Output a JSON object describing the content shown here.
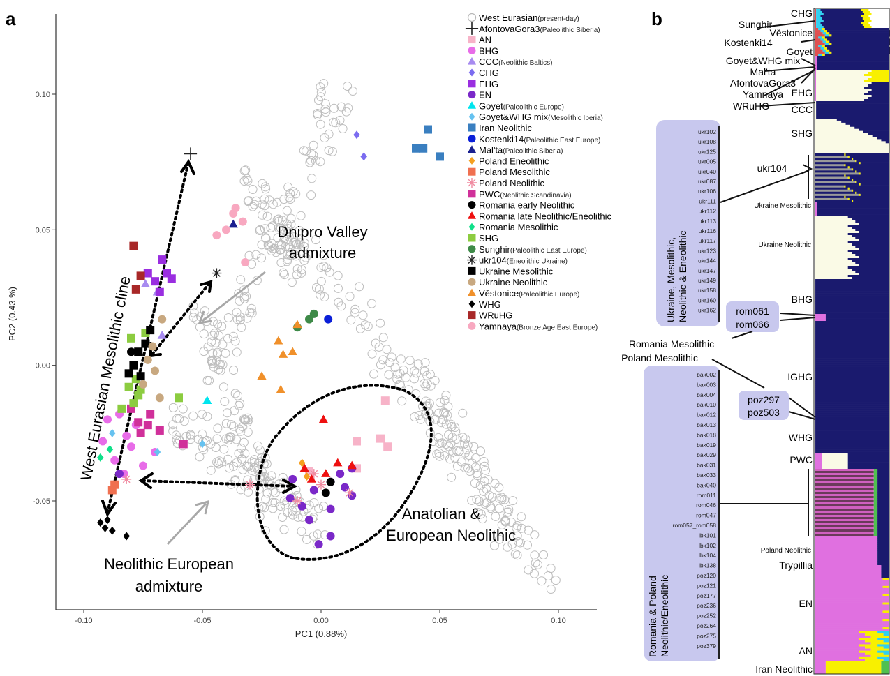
{
  "panels": {
    "a": "a",
    "b": "b"
  },
  "chart_data": {
    "type": "scatter",
    "xlabel": "PC1 (0.88%)",
    "ylabel": "PC2 (0.43 %)",
    "xlim": [
      -0.11,
      0.125
    ],
    "ylim": [
      -0.09,
      0.125
    ],
    "xticks": [
      {
        "v": -0.1,
        "label": "-0.10"
      },
      {
        "v": -0.05,
        "label": "-0.05"
      },
      {
        "v": 0.0,
        "label": "0.00"
      },
      {
        "v": 0.05,
        "label": "0.05"
      },
      {
        "v": 0.1,
        "label": "0.10"
      }
    ],
    "yticks": [
      {
        "v": -0.05,
        "label": "-0.05"
      },
      {
        "v": 0.0,
        "label": "0.00"
      },
      {
        "v": 0.05,
        "label": "0.05"
      },
      {
        "v": 0.1,
        "label": "0.10"
      }
    ],
    "legend": [
      {
        "name": "West Eurasian",
        "note": "(present-day)",
        "shape": "circle-open",
        "color": "#b8b8b8"
      },
      {
        "name": "AfontovaGora3",
        "note": "(Paleolithic Siberia)",
        "shape": "plus",
        "color": "#222222"
      },
      {
        "name": "AN",
        "note": "",
        "shape": "square",
        "color": "#f7b3c8"
      },
      {
        "name": "BHG",
        "note": "",
        "shape": "circle",
        "color": "#e86ce8"
      },
      {
        "name": "CCC",
        "note": "(Neolithic Baltics)",
        "shape": "triangle",
        "color": "#a78bf0"
      },
      {
        "name": "CHG",
        "note": "",
        "shape": "diamond",
        "color": "#7b6cf0"
      },
      {
        "name": "EHG",
        "note": "",
        "shape": "square",
        "color": "#9a2ee0"
      },
      {
        "name": "EN",
        "note": "",
        "shape": "circle",
        "color": "#7a28c8"
      },
      {
        "name": "Goyet",
        "note": "(Paleolithic Europe)",
        "shape": "triangle",
        "color": "#00e5ee"
      },
      {
        "name": "Goyet&WHG mix",
        "note": "(Mesolithic Iberia)",
        "shape": "diamond",
        "color": "#66c2f0"
      },
      {
        "name": "Iran Neolithic",
        "note": "",
        "shape": "square",
        "color": "#3a7fc0"
      },
      {
        "name": "Kostenki14",
        "note": "(Paleolithic East Europe)",
        "shape": "circle",
        "color": "#0a1fd8"
      },
      {
        "name": "Mal'ta",
        "note": "(Paleolithic Siberia)",
        "shape": "triangle",
        "color": "#1a2090"
      },
      {
        "name": "Poland Eneolithic",
        "note": "",
        "shape": "diamond",
        "color": "#f5a020"
      },
      {
        "name": "Poland Mesolithic",
        "note": "",
        "shape": "square",
        "color": "#f07050"
      },
      {
        "name": "Poland Neolithic",
        "note": "",
        "shape": "asterisk",
        "color": "#f08aa0"
      },
      {
        "name": "PWC",
        "note": "(Neolithic Scandinavia)",
        "shape": "square",
        "color": "#d0309a"
      },
      {
        "name": "Romania early Neolithic",
        "note": "",
        "shape": "circle",
        "color": "#000000"
      },
      {
        "name": "Romania late Neolithic/Eneolithic",
        "note": "",
        "shape": "triangle",
        "color": "#ee1010"
      },
      {
        "name": "Romania Mesolithic",
        "note": "",
        "shape": "diamond",
        "color": "#10e08a"
      },
      {
        "name": "SHG",
        "note": "",
        "shape": "square",
        "color": "#8ccc40"
      },
      {
        "name": "Sunghir",
        "note": "(Paleolithic East Europe)",
        "shape": "circle",
        "color": "#3e8a48"
      },
      {
        "name": "ukr104",
        "note": "(Eneolithic Ukraine)",
        "shape": "asterisk",
        "color": "#222222"
      },
      {
        "name": "Ukraine Mesolithic",
        "note": "",
        "shape": "square",
        "color": "#000000"
      },
      {
        "name": "Ukraine Neolithic",
        "note": "",
        "shape": "circle",
        "color": "#c8a880"
      },
      {
        "name": "Věstonice",
        "note": "(Paleolithic Europe)",
        "shape": "triangle",
        "color": "#f0902a"
      },
      {
        "name": "WHG",
        "note": "",
        "shape": "diamond",
        "color": "#000000"
      },
      {
        "name": "WRuHG",
        "note": "",
        "shape": "square",
        "color": "#a82828"
      },
      {
        "name": "Yamnaya",
        "note": "(Bronze Age East Europe)",
        "shape": "circle",
        "color": "#f8a8c0"
      }
    ],
    "points": [
      {
        "s": "AfontovaGora3",
        "x": -0.055,
        "y": 0.078
      },
      {
        "s": "ukr104",
        "x": -0.044,
        "y": 0.034
      },
      {
        "s": "AN",
        "x": 0.015,
        "y": -0.038
      },
      {
        "s": "AN",
        "x": 0.028,
        "y": -0.03
      },
      {
        "s": "AN",
        "x": 0.025,
        "y": -0.027
      },
      {
        "s": "AN",
        "x": 0.015,
        "y": -0.028
      },
      {
        "s": "AN",
        "x": 0.027,
        "y": -0.013
      },
      {
        "s": "AN",
        "x": -0.005,
        "y": -0.039
      },
      {
        "s": "BHG",
        "x": -0.09,
        "y": -0.02
      },
      {
        "s": "BHG",
        "x": -0.085,
        "y": -0.018
      },
      {
        "s": "BHG",
        "x": -0.08,
        "y": -0.03
      },
      {
        "s": "BHG",
        "x": -0.075,
        "y": -0.037
      },
      {
        "s": "BHG",
        "x": -0.07,
        "y": -0.032
      },
      {
        "s": "BHG",
        "x": -0.087,
        "y": -0.035
      },
      {
        "s": "BHG",
        "x": -0.083,
        "y": -0.04
      },
      {
        "s": "BHG",
        "x": -0.092,
        "y": -0.028
      },
      {
        "s": "BHG",
        "x": -0.078,
        "y": -0.022
      },
      {
        "s": "BHG",
        "x": -0.082,
        "y": -0.026
      },
      {
        "s": "CCC",
        "x": -0.074,
        "y": 0.03
      },
      {
        "s": "CCC",
        "x": -0.069,
        "y": 0.027
      },
      {
        "s": "CCC",
        "x": -0.067,
        "y": 0.011
      },
      {
        "s": "CHG",
        "x": 0.015,
        "y": 0.085
      },
      {
        "s": "CHG",
        "x": 0.018,
        "y": 0.077
      },
      {
        "s": "EHG",
        "x": -0.067,
        "y": 0.039
      },
      {
        "s": "EHG",
        "x": -0.065,
        "y": 0.034
      },
      {
        "s": "EHG",
        "x": -0.07,
        "y": 0.031
      },
      {
        "s": "EHG",
        "x": -0.073,
        "y": 0.034
      },
      {
        "s": "EHG",
        "x": -0.068,
        "y": 0.027
      },
      {
        "s": "EHG",
        "x": -0.063,
        "y": 0.032
      },
      {
        "s": "EN",
        "x": -0.013,
        "y": -0.049
      },
      {
        "s": "EN",
        "x": -0.008,
        "y": -0.052
      },
      {
        "s": "EN",
        "x": -0.003,
        "y": -0.046
      },
      {
        "s": "EN",
        "x": 0.004,
        "y": -0.043
      },
      {
        "s": "EN",
        "x": 0.01,
        "y": -0.045
      },
      {
        "s": "EN",
        "x": -0.005,
        "y": -0.057
      },
      {
        "s": "EN",
        "x": 0.004,
        "y": -0.053
      },
      {
        "s": "EN",
        "x": 0.013,
        "y": -0.048
      },
      {
        "s": "EN",
        "x": -0.001,
        "y": -0.066
      },
      {
        "s": "EN",
        "x": 0.004,
        "y": -0.063
      },
      {
        "s": "EN",
        "x": 0.008,
        "y": -0.04
      },
      {
        "s": "EN",
        "x": -0.012,
        "y": -0.042
      },
      {
        "s": "EN",
        "x": -0.085,
        "y": -0.04
      },
      {
        "s": "EN",
        "x": 0.013,
        "y": -0.038
      },
      {
        "s": "Goyet",
        "x": -0.048,
        "y": -0.013
      },
      {
        "s": "Goyet&WHG mix",
        "x": -0.05,
        "y": -0.029
      },
      {
        "s": "Goyet&WHG mix",
        "x": -0.069,
        "y": -0.032
      },
      {
        "s": "Goyet&WHG mix",
        "x": -0.088,
        "y": -0.025
      },
      {
        "s": "Iran Neolithic",
        "x": 0.045,
        "y": 0.087
      },
      {
        "s": "Iran Neolithic",
        "x": 0.04,
        "y": 0.08
      },
      {
        "s": "Iran Neolithic",
        "x": 0.043,
        "y": 0.08
      },
      {
        "s": "Iran Neolithic",
        "x": 0.05,
        "y": 0.077
      },
      {
        "s": "Kostenki14",
        "x": 0.003,
        "y": 0.017
      },
      {
        "s": "Mal'ta",
        "x": -0.037,
        "y": 0.052
      },
      {
        "s": "Poland Eneolithic",
        "x": -0.008,
        "y": -0.036
      },
      {
        "s": "Poland Eneolithic",
        "x": -0.006,
        "y": -0.041
      },
      {
        "s": "Poland Mesolithic",
        "x": -0.088,
        "y": -0.046
      },
      {
        "s": "Poland Mesolithic",
        "x": -0.087,
        "y": -0.044
      },
      {
        "s": "Poland Neolithic",
        "x": -0.082,
        "y": -0.042
      },
      {
        "s": "Poland Neolithic",
        "x": -0.01,
        "y": -0.05
      },
      {
        "s": "Poland Neolithic",
        "x": -0.003,
        "y": -0.04
      },
      {
        "s": "Poland Neolithic",
        "x": 0.0,
        "y": -0.044
      },
      {
        "s": "Poland Neolithic",
        "x": 0.012,
        "y": -0.047
      },
      {
        "s": "Poland Neolithic",
        "x": -0.03,
        "y": -0.044
      },
      {
        "s": "PWC",
        "x": -0.08,
        "y": -0.016
      },
      {
        "s": "PWC",
        "x": -0.077,
        "y": -0.021
      },
      {
        "s": "PWC",
        "x": -0.073,
        "y": -0.022
      },
      {
        "s": "PWC",
        "x": -0.072,
        "y": -0.018
      },
      {
        "s": "PWC",
        "x": -0.068,
        "y": -0.024
      },
      {
        "s": "PWC",
        "x": -0.058,
        "y": -0.029
      },
      {
        "s": "PWC",
        "x": -0.076,
        "y": -0.025
      },
      {
        "s": "Romania early Neolithic",
        "x": -0.08,
        "y": 0.005
      },
      {
        "s": "Romania early Neolithic",
        "x": 0.002,
        "y": -0.047
      },
      {
        "s": "Romania early Neolithic",
        "x": 0.004,
        "y": -0.043
      },
      {
        "s": "Romania late Neolithic/Eneolithic",
        "x": 0.001,
        "y": -0.02
      },
      {
        "s": "Romania late Neolithic/Eneolithic",
        "x": -0.007,
        "y": -0.038
      },
      {
        "s": "Romania late Neolithic/Eneolithic",
        "x": 0.007,
        "y": -0.036
      },
      {
        "s": "Romania late Neolithic/Eneolithic",
        "x": 0.013,
        "y": -0.037
      },
      {
        "s": "Romania late Neolithic/Eneolithic",
        "x": -0.004,
        "y": -0.042
      },
      {
        "s": "Romania late Neolithic/Eneolithic",
        "x": 0.002,
        "y": -0.04
      },
      {
        "s": "Romania Mesolithic",
        "x": -0.093,
        "y": -0.034
      },
      {
        "s": "Romania Mesolithic",
        "x": -0.089,
        "y": -0.031
      },
      {
        "s": "SHG",
        "x": -0.078,
        "y": -0.005
      },
      {
        "s": "SHG",
        "x": -0.076,
        "y": -0.009
      },
      {
        "s": "SHG",
        "x": -0.079,
        "y": -0.014
      },
      {
        "s": "SHG",
        "x": -0.074,
        "y": 0.012
      },
      {
        "s": "SHG",
        "x": -0.084,
        "y": -0.016
      },
      {
        "s": "SHG",
        "x": -0.06,
        "y": -0.012
      },
      {
        "s": "SHG",
        "x": -0.081,
        "y": -0.008
      },
      {
        "s": "SHG",
        "x": -0.08,
        "y": 0.01
      },
      {
        "s": "SHG",
        "x": -0.077,
        "y": -0.011
      },
      {
        "s": "Sunghir",
        "x": -0.01,
        "y": 0.014
      },
      {
        "s": "Sunghir",
        "x": -0.003,
        "y": 0.019
      },
      {
        "s": "Sunghir",
        "x": -0.005,
        "y": 0.017
      },
      {
        "s": "Ukraine Mesolithic",
        "x": -0.077,
        "y": 0.005
      },
      {
        "s": "Ukraine Mesolithic",
        "x": -0.079,
        "y": 0.0
      },
      {
        "s": "Ukraine Mesolithic",
        "x": -0.072,
        "y": 0.013
      },
      {
        "s": "Ukraine Mesolithic",
        "x": -0.076,
        "y": -0.004
      },
      {
        "s": "Ukraine Mesolithic",
        "x": -0.081,
        "y": -0.003
      },
      {
        "s": "Ukraine Mesolithic",
        "x": -0.074,
        "y": 0.008
      },
      {
        "s": "Ukraine Neolithic",
        "x": -0.067,
        "y": 0.017
      },
      {
        "s": "Ukraine Neolithic",
        "x": -0.073,
        "y": 0.002
      },
      {
        "s": "Ukraine Neolithic",
        "x": -0.07,
        "y": -0.002
      },
      {
        "s": "Ukraine Neolithic",
        "x": -0.068,
        "y": -0.012
      },
      {
        "s": "Ukraine Neolithic",
        "x": -0.075,
        "y": -0.007
      },
      {
        "s": "Ukraine Neolithic",
        "x": -0.071,
        "y": 0.007
      },
      {
        "s": "Věstonice",
        "x": -0.01,
        "y": 0.015
      },
      {
        "s": "Věstonice",
        "x": -0.018,
        "y": 0.009
      },
      {
        "s": "Věstonice",
        "x": -0.016,
        "y": 0.004
      },
      {
        "s": "Věstonice",
        "x": -0.012,
        "y": 0.005
      },
      {
        "s": "Věstonice",
        "x": -0.025,
        "y": -0.004
      },
      {
        "s": "Věstonice",
        "x": -0.017,
        "y": -0.009
      },
      {
        "s": "WHG",
        "x": -0.093,
        "y": -0.058
      },
      {
        "s": "WHG",
        "x": -0.091,
        "y": -0.06
      },
      {
        "s": "WHG",
        "x": -0.088,
        "y": -0.061
      },
      {
        "s": "WHG",
        "x": -0.082,
        "y": -0.063
      },
      {
        "s": "WHG",
        "x": -0.09,
        "y": -0.057
      },
      {
        "s": "WRuHG",
        "x": -0.079,
        "y": 0.044
      },
      {
        "s": "WRuHG",
        "x": -0.076,
        "y": 0.033
      },
      {
        "s": "WRuHG",
        "x": -0.078,
        "y": 0.028
      },
      {
        "s": "Yamnaya",
        "x": -0.037,
        "y": 0.056
      },
      {
        "s": "Yamnaya",
        "x": -0.036,
        "y": 0.058
      },
      {
        "s": "Yamnaya",
        "x": -0.033,
        "y": 0.053
      },
      {
        "s": "Yamnaya",
        "x": -0.04,
        "y": 0.05
      },
      {
        "s": "Yamnaya",
        "x": -0.032,
        "y": 0.038
      },
      {
        "s": "Yamnaya",
        "x": -0.044,
        "y": 0.048
      }
    ],
    "annotations": {
      "cline": "West Eurasian Mesolithic cline",
      "dnipro_line1": "Dnipro Valley",
      "dnipro_line2": "admixture",
      "neo_eu_line1": "Neolithic European",
      "neo_eu_line2": "admixture",
      "anatolian_line1": "Anatolian &",
      "anatolian_line2": "European Neolithic"
    }
  },
  "panel_b": {
    "right_labels": [
      "CHG",
      "Sunghir",
      "Věstonice",
      "Kostenki14",
      "Goyet",
      "Goyet&WHG mix",
      "Mal'ta",
      "AfontovaGora3",
      "Yamnaya",
      "EHG",
      "WRuHG",
      "CCC",
      "SHG",
      "ukr104",
      "Ukraine Mesolithic",
      "Ukraine Neolithic",
      "BHG",
      "rom061",
      "rom066",
      "Romania Mesolithic",
      "Poland Mesolithic",
      "IGHG",
      "poz297",
      "poz503",
      "WHG",
      "PWC",
      "Poland Neolithic",
      "Trypillia",
      "EN",
      "AN",
      "Iran Neolithic"
    ],
    "ukraine_group_title_line1": "Ukraine, Mesolithic,",
    "ukraine_group_title_line2": "Neolithic & Eneolithic",
    "ukraine_ids": [
      "ukr102",
      "ukr108",
      "ukr125",
      "ukr005",
      "ukr040",
      "ukr087",
      "ukr106",
      "ukr111",
      "ukr112",
      "ukr113",
      "ukr116",
      "ukr117",
      "ukr123",
      "ukr144",
      "ukr147",
      "ukr149",
      "ukr158",
      "ukr160",
      "ukr162"
    ],
    "romania_group_title_line1": "Romania & Poland",
    "romania_group_title_line2": "Neolithic/Eneolithic",
    "romania_ids": [
      "bak002",
      "bak003",
      "bak004",
      "bak010",
      "bak012",
      "bak013",
      "bak018",
      "bak019",
      "bak029",
      "bak031",
      "bak033",
      "bak040",
      "rom011",
      "rom046",
      "rom047",
      "rom057_rom058",
      "lbk101",
      "lbk102",
      "lbk104",
      "lbk138",
      "poz120",
      "poz121",
      "poz177",
      "poz236",
      "poz252",
      "poz264",
      "poz275",
      "poz379"
    ],
    "colors": {
      "navy": "#1a1a6e",
      "cream": "#fafae6",
      "magenta": "#e070e0",
      "yellow": "#f8f000",
      "gray": "#9a9a9a",
      "red": "#e05050",
      "cyan": "#30d0f0",
      "green": "#50c050",
      "lavender": "#c8c8ee",
      "mauve": "#6a3a5a"
    }
  }
}
